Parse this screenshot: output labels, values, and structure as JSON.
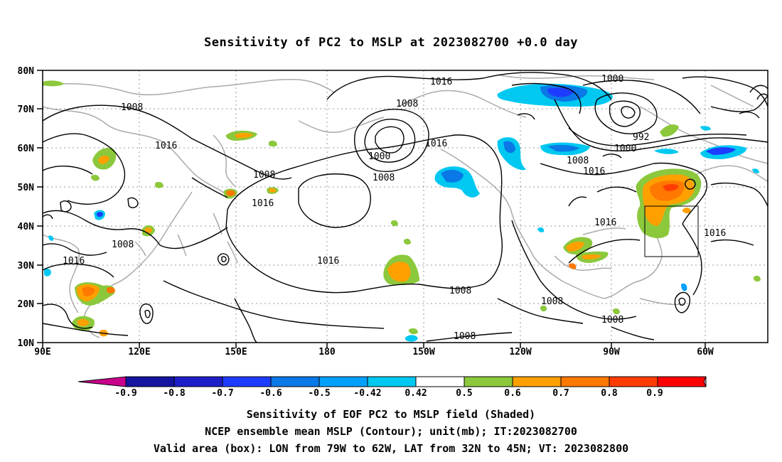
{
  "title": "Sensitivity of PC2 to MSLP at 2023082700 +0.0 day",
  "map": {
    "lon_labels": [
      "90E",
      "120E",
      "150E",
      "180",
      "150W",
      "120W",
      "90W",
      "60W"
    ],
    "lat_labels": [
      "80N",
      "70N",
      "60N",
      "50N",
      "40N",
      "30N",
      "20N",
      "10N"
    ],
    "contour_labels": [
      "1016",
      "1008",
      "1016",
      "1008",
      "1016",
      "1000",
      "1008",
      "1016",
      "1008",
      "1000",
      "992",
      "1000",
      "1008",
      "1016",
      "1016",
      "1016",
      "1016",
      "1016",
      "1008",
      "1008",
      "1008"
    ],
    "valid_box": {
      "lon": [
        -79,
        -62
      ],
      "lat": [
        32,
        45
      ]
    }
  },
  "colorbar": {
    "ticks": [
      "-0.9",
      "-0.8",
      "-0.7",
      "-0.6",
      "-0.5",
      "-0.42",
      "0.42",
      "0.5",
      "0.6",
      "0.7",
      "0.8",
      "0.9"
    ],
    "colors": [
      "#c8008c",
      "#1414a0",
      "#1e1ec8",
      "#1e3cff",
      "#0a78e6",
      "#00a0ff",
      "#00c8f0",
      "#ffffff",
      "#8cc83c",
      "#ffa000",
      "#ff7800",
      "#ff3c00",
      "#ff0000",
      "#f0a0c8"
    ]
  },
  "captions": [
    "Sensitivity of EOF PC2 to MSLP field (Shaded)",
    "NCEP ensemble mean MSLP (Contour); unit(mb); IT:2023082700",
    "Valid area (box): LON from 79W to 62W, LAT from 32N to 45N; VT: 2023082800"
  ]
}
